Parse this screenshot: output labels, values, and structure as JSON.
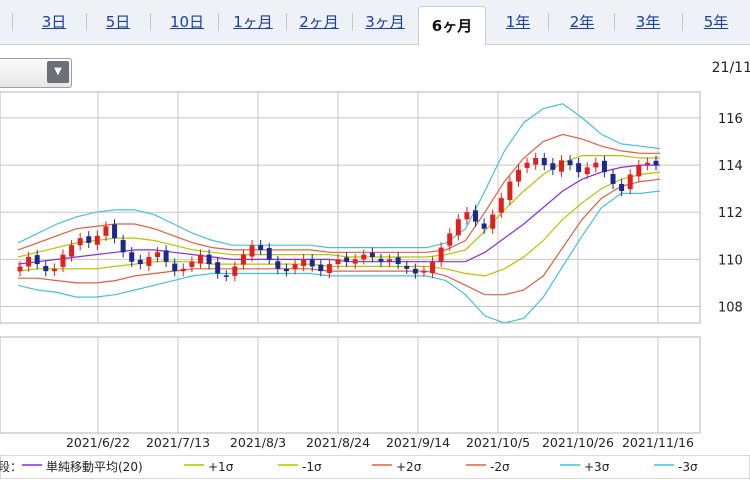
{
  "tabs": [
    {
      "label": "3日"
    },
    {
      "label": "5日"
    },
    {
      "label": "10日"
    },
    {
      "label": "1ヶ月"
    },
    {
      "label": "2ヶ月"
    },
    {
      "label": "3ヶ月"
    },
    {
      "label": "6ヶ月"
    },
    {
      "label": "1年"
    },
    {
      "label": "2年"
    },
    {
      "label": "3年"
    },
    {
      "label": "5年"
    }
  ],
  "active_tab": "6ヶ月",
  "header": {
    "date": "21/11"
  },
  "colors": {
    "up": "#e02020",
    "down": "#1a2a8c",
    "sma": "#8a2be2",
    "s1": "#b5c400",
    "s2": "#e06040",
    "s3": "#46c2d8"
  },
  "chart_data": {
    "type": "candlestick",
    "x_tick_labels": [
      "2021/6/22",
      "2021/7/13",
      "2021/8/3",
      "2021/8/24",
      "2021/9/14",
      "2021/10/5",
      "2021/10/26",
      "2021/11/16"
    ],
    "y_tick_labels": [
      "116",
      "114",
      "112",
      "110",
      "108"
    ],
    "ylim": [
      107.3,
      117.1
    ],
    "grid": true,
    "close": [
      109.7,
      110.1,
      109.8,
      109.5,
      109.6,
      110.2,
      110.6,
      110.9,
      110.7,
      111.0,
      111.4,
      110.9,
      110.3,
      109.9,
      109.8,
      110.1,
      110.3,
      109.9,
      109.5,
      109.6,
      109.9,
      110.2,
      109.8,
      109.4,
      109.3,
      109.7,
      110.2,
      110.6,
      110.4,
      110.0,
      109.6,
      109.5,
      109.8,
      110.0,
      109.7,
      109.5,
      109.8,
      110.0,
      109.9,
      110.0,
      110.2,
      110.1,
      109.9,
      110.0,
      109.8,
      109.6,
      109.4,
      109.5,
      109.9,
      110.5,
      111.1,
      111.7,
      112.0,
      111.6,
      111.3,
      111.9,
      112.6,
      113.3,
      113.8,
      114.1,
      114.3,
      114.0,
      113.8,
      114.2,
      114.0,
      113.7,
      113.9,
      114.1,
      113.7,
      113.2,
      112.9,
      113.6,
      114.0,
      114.1,
      114.0
    ],
    "series": [
      {
        "name": "単純移動平均(20)",
        "values": [
          109.8,
          109.9,
          110.0,
          110.1,
          110.2,
          110.3,
          110.4,
          110.4,
          110.3,
          110.2,
          110.1,
          110.0,
          110.0,
          110.0,
          110.0,
          110.0,
          110.0,
          109.9,
          109.9,
          109.9,
          109.9,
          109.9,
          109.9,
          109.9,
          110.3,
          110.9,
          111.5,
          112.2,
          112.9,
          113.4,
          113.7,
          113.9,
          114.0,
          114.0
        ]
      },
      {
        "name": "+1σ",
        "values": [
          110.1,
          110.3,
          110.5,
          110.7,
          110.8,
          110.9,
          110.9,
          110.8,
          110.6,
          110.4,
          110.3,
          110.2,
          110.2,
          110.2,
          110.2,
          110.2,
          110.2,
          110.1,
          110.1,
          110.1,
          110.1,
          110.1,
          110.2,
          110.4,
          111.2,
          112.1,
          112.9,
          113.6,
          114.1,
          114.4,
          114.4,
          114.4,
          114.3,
          114.3
        ]
      },
      {
        "name": "-1σ",
        "values": [
          109.5,
          109.6,
          109.6,
          109.6,
          109.6,
          109.7,
          109.8,
          109.9,
          109.9,
          109.9,
          109.8,
          109.8,
          109.8,
          109.8,
          109.8,
          109.8,
          109.7,
          109.7,
          109.7,
          109.7,
          109.7,
          109.7,
          109.6,
          109.4,
          109.3,
          109.6,
          110.1,
          110.8,
          111.7,
          112.4,
          113.0,
          113.4,
          113.6,
          113.7
        ]
      },
      {
        "name": "+2σ",
        "values": [
          110.4,
          110.7,
          111.0,
          111.3,
          111.4,
          111.5,
          111.5,
          111.3,
          111.0,
          110.7,
          110.5,
          110.4,
          110.4,
          110.4,
          110.4,
          110.4,
          110.3,
          110.3,
          110.3,
          110.3,
          110.3,
          110.3,
          110.4,
          110.8,
          112.0,
          113.3,
          114.3,
          115.0,
          115.3,
          115.1,
          114.8,
          114.6,
          114.5,
          114.5
        ]
      },
      {
        "name": "-2σ",
        "values": [
          109.2,
          109.2,
          109.1,
          109.0,
          109.0,
          109.1,
          109.3,
          109.4,
          109.5,
          109.6,
          109.6,
          109.6,
          109.6,
          109.6,
          109.6,
          109.6,
          109.5,
          109.5,
          109.5,
          109.5,
          109.5,
          109.5,
          109.3,
          108.9,
          108.5,
          108.5,
          108.7,
          109.3,
          110.5,
          111.7,
          112.6,
          113.1,
          113.3,
          113.4
        ]
      },
      {
        "name": "+3σ",
        "values": [
          110.7,
          111.1,
          111.5,
          111.8,
          112.0,
          112.1,
          112.1,
          111.9,
          111.5,
          111.1,
          110.8,
          110.6,
          110.6,
          110.6,
          110.6,
          110.6,
          110.5,
          110.5,
          110.5,
          110.5,
          110.5,
          110.5,
          110.7,
          111.3,
          112.9,
          114.6,
          115.8,
          116.4,
          116.6,
          116.0,
          115.3,
          114.9,
          114.8,
          114.7
        ]
      },
      {
        "name": "-3σ",
        "values": [
          108.9,
          108.7,
          108.6,
          108.4,
          108.4,
          108.5,
          108.7,
          108.9,
          109.1,
          109.3,
          109.4,
          109.4,
          109.4,
          109.4,
          109.4,
          109.4,
          109.3,
          109.3,
          109.3,
          109.3,
          109.3,
          109.3,
          109.1,
          108.5,
          107.6,
          107.3,
          107.5,
          108.4,
          109.7,
          111.0,
          112.2,
          112.8,
          112.8,
          112.9
        ]
      }
    ]
  },
  "legend": {
    "prefix": "段：",
    "items": [
      {
        "label": "単純移動平均(20)",
        "color": "#8a2be2"
      },
      {
        "label": "+1σ",
        "color": "#b5c400"
      },
      {
        "label": "-1σ",
        "color": "#b5c400"
      },
      {
        "label": "+2σ",
        "color": "#e06040"
      },
      {
        "label": "-2σ",
        "color": "#e06040"
      },
      {
        "label": "+3σ",
        "color": "#46c2d8"
      },
      {
        "label": "-3σ",
        "color": "#46c2d8"
      }
    ]
  }
}
